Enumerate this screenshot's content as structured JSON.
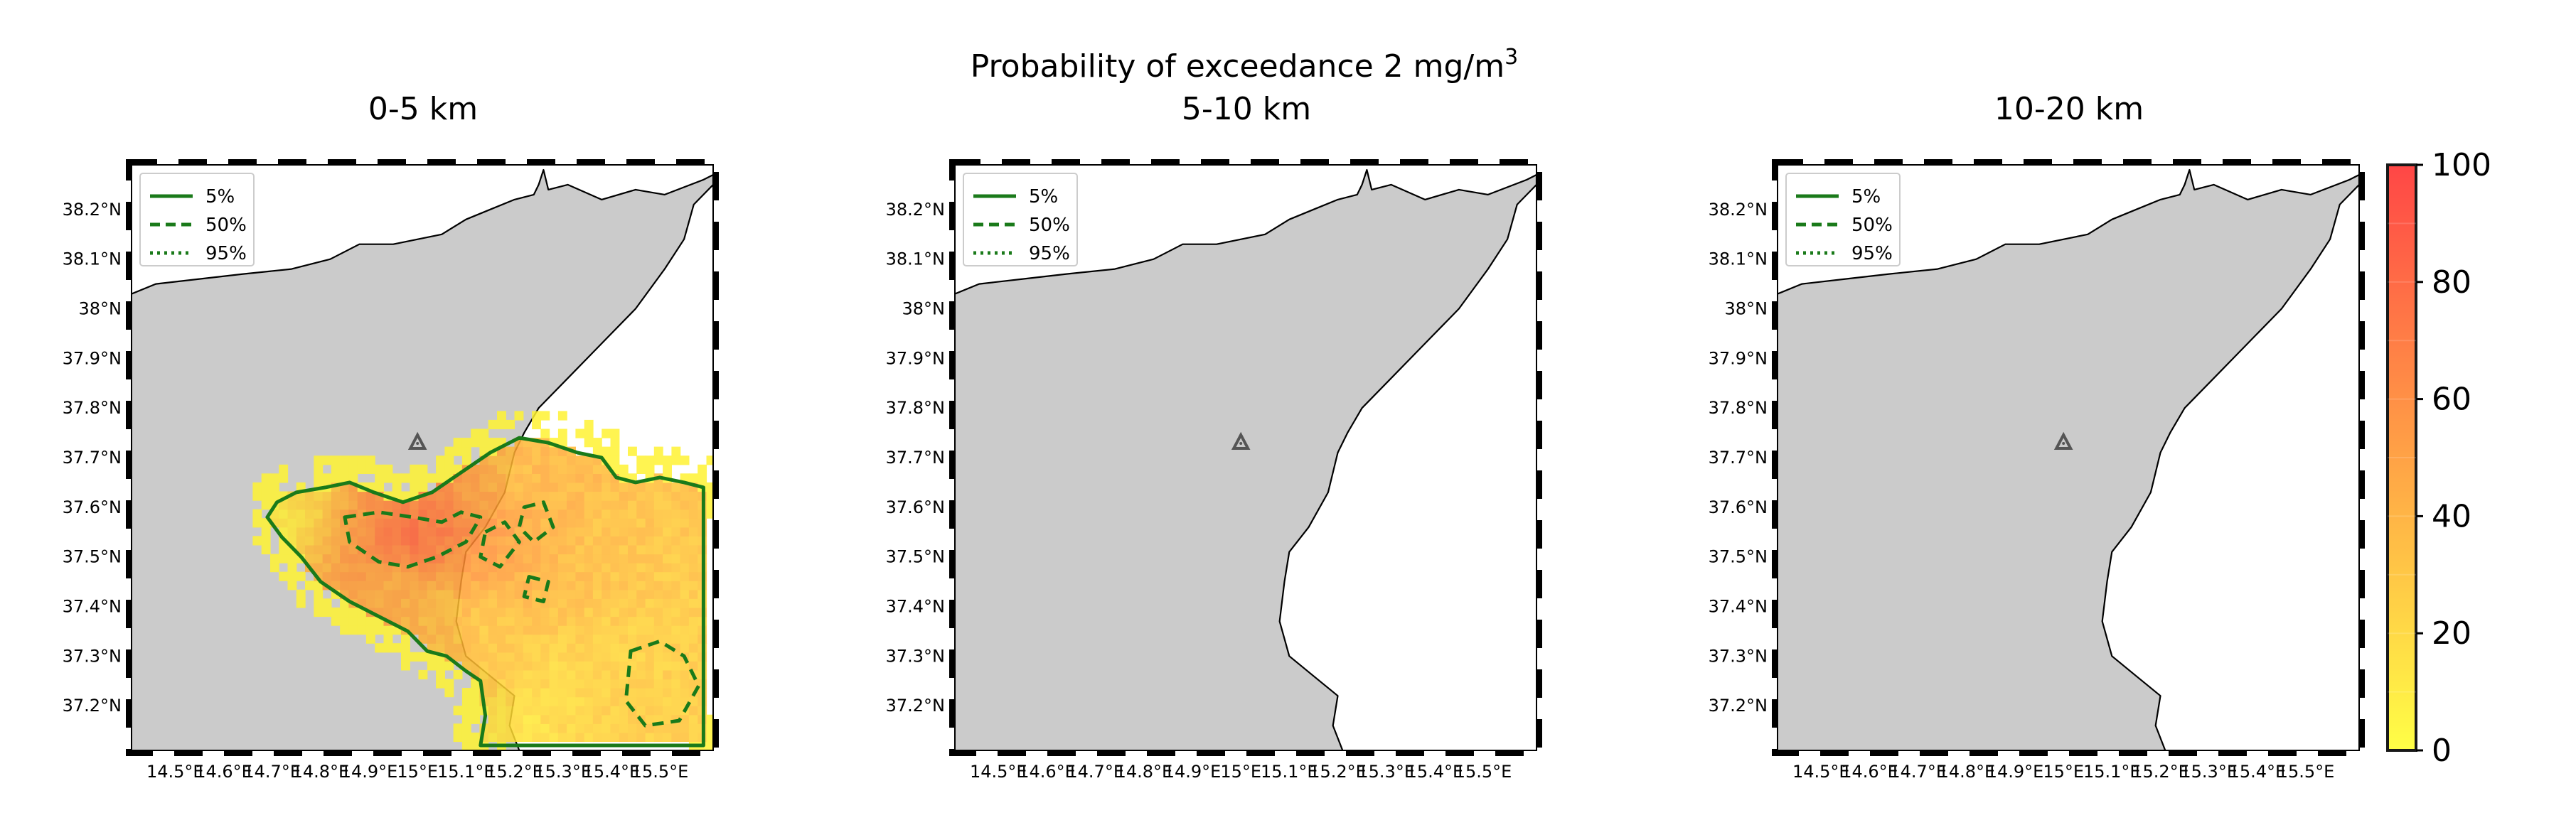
{
  "figure": {
    "suptitle": "Probability of exceedance 2 mg/m",
    "suptitle_sup": "3"
  },
  "chart_data": [
    {
      "type": "heatmap",
      "title": "0-5 km",
      "xlabel": "",
      "ylabel": "",
      "x_ticks": [
        "14.5°E",
        "14.6°E",
        "14.7°E",
        "14.8°E",
        "14.9°E",
        "15°E",
        "15.1°E",
        "15.2°E",
        "15.3°E",
        "15.4°E",
        "15.5°E"
      ],
      "y_ticks": [
        "37.2°N",
        "37.3°N",
        "37.4°N",
        "37.5°N",
        "37.6°N",
        "37.7°N",
        "37.8°N",
        "37.9°N",
        "38°N",
        "38.1°N",
        "38.2°N"
      ],
      "xlim": [
        14.41,
        15.61
      ],
      "ylim": [
        37.11,
        38.29
      ],
      "legend": {
        "position": "top-left",
        "entries": [
          {
            "label": "5%",
            "style": "solid"
          },
          {
            "label": "50%",
            "style": "dashed"
          },
          {
            "label": "95%",
            "style": "dotted"
          }
        ]
      },
      "vent": {
        "lon": 15.0,
        "lat": 37.73,
        "marker": "triangle"
      },
      "contours": {
        "5%": [
          [
            14.75,
            37.63
          ],
          [
            14.81,
            37.64
          ],
          [
            14.86,
            37.65
          ],
          [
            14.91,
            37.63
          ],
          [
            14.97,
            37.61
          ],
          [
            15.03,
            37.63
          ],
          [
            15.09,
            37.67
          ],
          [
            15.15,
            37.71
          ],
          [
            15.21,
            37.74
          ],
          [
            15.27,
            37.73
          ],
          [
            15.33,
            37.71
          ],
          [
            15.38,
            37.7
          ],
          [
            15.41,
            37.66
          ],
          [
            15.45,
            37.65
          ],
          [
            15.5,
            37.66
          ],
          [
            15.55,
            37.65
          ],
          [
            15.59,
            37.64
          ],
          [
            15.59,
            37.12
          ],
          [
            15.13,
            37.12
          ],
          [
            15.14,
            37.18
          ],
          [
            15.13,
            37.25
          ],
          [
            15.1,
            37.27
          ],
          [
            15.06,
            37.3
          ],
          [
            15.02,
            37.31
          ],
          [
            14.98,
            37.35
          ],
          [
            14.92,
            37.38
          ],
          [
            14.86,
            37.41
          ],
          [
            14.8,
            37.45
          ],
          [
            14.76,
            37.5
          ],
          [
            14.72,
            37.54
          ],
          [
            14.69,
            37.58
          ],
          [
            14.71,
            37.61
          ]
        ],
        "50%": [
          [
            [
              14.85,
              37.58
            ],
            [
              14.92,
              37.59
            ],
            [
              14.99,
              37.58
            ],
            [
              15.05,
              37.57
            ],
            [
              15.09,
              37.59
            ],
            [
              15.13,
              37.58
            ],
            [
              15.1,
              37.53
            ],
            [
              15.04,
              37.5
            ],
            [
              14.98,
              37.48
            ],
            [
              14.92,
              37.49
            ],
            [
              14.86,
              37.53
            ]
          ],
          [
            [
              15.14,
              37.55
            ],
            [
              15.18,
              37.57
            ],
            [
              15.21,
              37.53
            ],
            [
              15.17,
              37.48
            ],
            [
              15.13,
              37.5
            ]
          ],
          [
            [
              15.22,
              37.6
            ],
            [
              15.26,
              37.61
            ],
            [
              15.28,
              37.56
            ],
            [
              15.24,
              37.53
            ],
            [
              15.21,
              37.56
            ]
          ],
          [
            [
              15.23,
              37.46
            ],
            [
              15.27,
              37.45
            ],
            [
              15.26,
              37.41
            ],
            [
              15.22,
              37.42
            ]
          ],
          [
            [
              15.44,
              37.31
            ],
            [
              15.5,
              37.33
            ],
            [
              15.55,
              37.3
            ],
            [
              15.58,
              37.24
            ],
            [
              15.54,
              37.17
            ],
            [
              15.47,
              37.16
            ],
            [
              15.43,
              37.21
            ]
          ]
        ]
      },
      "heatmap": {
        "value_range": [
          0,
          100
        ],
        "max_value_approx": 80,
        "note_cells": [
          {
            "lon": 14.72,
            "lat": 37.57,
            "v": 8
          },
          {
            "lon": 14.78,
            "lat": 37.6,
            "v": 22
          },
          {
            "lon": 14.88,
            "lat": 37.55,
            "v": 55
          },
          {
            "lon": 14.95,
            "lat": 37.54,
            "v": 72
          },
          {
            "lon": 15.0,
            "lat": 37.54,
            "v": 78
          },
          {
            "lon": 15.05,
            "lat": 37.55,
            "v": 70
          },
          {
            "lon": 15.1,
            "lat": 37.56,
            "v": 58
          },
          {
            "lon": 15.15,
            "lat": 37.6,
            "v": 48
          },
          {
            "lon": 15.2,
            "lat": 37.66,
            "v": 35
          },
          {
            "lon": 15.3,
            "lat": 37.62,
            "v": 38
          },
          {
            "lon": 15.4,
            "lat": 37.55,
            "v": 32
          },
          {
            "lon": 15.5,
            "lat": 37.5,
            "v": 30
          },
          {
            "lon": 15.55,
            "lat": 37.4,
            "v": 26
          },
          {
            "lon": 15.45,
            "lat": 37.3,
            "v": 24
          },
          {
            "lon": 15.3,
            "lat": 37.25,
            "v": 20
          },
          {
            "lon": 15.2,
            "lat": 37.15,
            "v": 14
          },
          {
            "lon": 14.95,
            "lat": 37.45,
            "v": 42
          },
          {
            "lon": 15.05,
            "lat": 37.4,
            "v": 34
          },
          {
            "lon": 15.15,
            "lat": 37.35,
            "v": 28
          },
          {
            "lon": 14.9,
            "lat": 37.15,
            "v": 8
          }
        ]
      }
    },
    {
      "type": "heatmap",
      "title": "5-10 km",
      "xlabel": "",
      "ylabel": "",
      "x_ticks": [
        "14.5°E",
        "14.6°E",
        "14.7°E",
        "14.8°E",
        "14.9°E",
        "15°E",
        "15.1°E",
        "15.2°E",
        "15.3°E",
        "15.4°E",
        "15.5°E"
      ],
      "y_ticks": [
        "37.2°N",
        "37.3°N",
        "37.4°N",
        "37.5°N",
        "37.6°N",
        "37.7°N",
        "37.8°N",
        "37.9°N",
        "38°N",
        "38.1°N",
        "38.2°N"
      ],
      "xlim": [
        14.41,
        15.61
      ],
      "ylim": [
        37.11,
        38.29
      ],
      "legend": {
        "position": "top-left",
        "entries": [
          {
            "label": "5%",
            "style": "solid"
          },
          {
            "label": "50%",
            "style": "dashed"
          },
          {
            "label": "95%",
            "style": "dotted"
          }
        ]
      },
      "vent": {
        "lon": 15.0,
        "lat": 37.73,
        "marker": "triangle"
      },
      "heatmap": {
        "value_range": [
          0,
          100
        ],
        "note_cells": []
      }
    },
    {
      "type": "heatmap",
      "title": "10-20 km",
      "xlabel": "",
      "ylabel": "",
      "x_ticks": [
        "14.5°E",
        "14.6°E",
        "14.7°E",
        "14.8°E",
        "14.9°E",
        "15°E",
        "15.1°E",
        "15.2°E",
        "15.3°E",
        "15.4°E",
        "15.5°E"
      ],
      "y_ticks": [
        "37.2°N",
        "37.3°N",
        "37.4°N",
        "37.5°N",
        "37.6°N",
        "37.7°N",
        "37.8°N",
        "37.9°N",
        "38°N",
        "38.1°N",
        "38.2°N"
      ],
      "xlim": [
        14.41,
        15.61
      ],
      "ylim": [
        37.11,
        38.29
      ],
      "legend": {
        "position": "top-left",
        "entries": [
          {
            "label": "5%",
            "style": "solid"
          },
          {
            "label": "50%",
            "style": "dashed"
          },
          {
            "label": "95%",
            "style": "dotted"
          }
        ]
      },
      "vent": {
        "lon": 15.0,
        "lat": 37.73,
        "marker": "triangle"
      },
      "heatmap": {
        "value_range": [
          0,
          100
        ],
        "note_cells": []
      }
    }
  ],
  "coastline": [
    [
      14.41,
      38.03
    ],
    [
      14.46,
      38.05
    ],
    [
      14.55,
      38.06
    ],
    [
      14.64,
      38.07
    ],
    [
      14.74,
      38.08
    ],
    [
      14.82,
      38.1
    ],
    [
      14.88,
      38.13
    ],
    [
      14.95,
      38.13
    ],
    [
      15.05,
      38.15
    ],
    [
      15.1,
      38.18
    ],
    [
      15.15,
      38.2
    ],
    [
      15.2,
      38.22
    ],
    [
      15.24,
      38.23
    ],
    [
      15.25,
      38.25
    ],
    [
      15.26,
      38.28
    ],
    [
      15.27,
      38.24
    ],
    [
      15.31,
      38.25
    ],
    [
      15.38,
      38.22
    ],
    [
      15.45,
      38.24
    ],
    [
      15.51,
      38.23
    ],
    [
      15.59,
      38.26
    ],
    [
      15.61,
      38.27
    ],
    [
      15.61,
      38.25
    ],
    [
      15.57,
      38.21
    ],
    [
      15.55,
      38.14
    ],
    [
      15.51,
      38.08
    ],
    [
      15.45,
      38.0
    ],
    [
      15.38,
      37.93
    ],
    [
      15.31,
      37.86
    ],
    [
      15.25,
      37.8
    ],
    [
      15.22,
      37.75
    ],
    [
      15.2,
      37.71
    ],
    [
      15.18,
      37.63
    ],
    [
      15.14,
      37.56
    ],
    [
      15.1,
      37.51
    ],
    [
      15.09,
      37.45
    ],
    [
      15.08,
      37.37
    ],
    [
      15.1,
      37.3
    ],
    [
      15.15,
      37.26
    ],
    [
      15.2,
      37.22
    ],
    [
      15.19,
      37.16
    ],
    [
      15.21,
      37.11
    ]
  ],
  "colorbar": {
    "ticks": [
      "0",
      "20",
      "40",
      "60",
      "80",
      "100"
    ],
    "range": [
      0,
      100
    ],
    "colormap": "autumn_r (yellow to red)",
    "colors": {
      "low": "#ffff33",
      "high": "#ff3333"
    }
  },
  "colors": {
    "land": "#cbcbcb",
    "sea": "#ffffff",
    "contour": "#1a7a1a",
    "vent": "#555555"
  }
}
